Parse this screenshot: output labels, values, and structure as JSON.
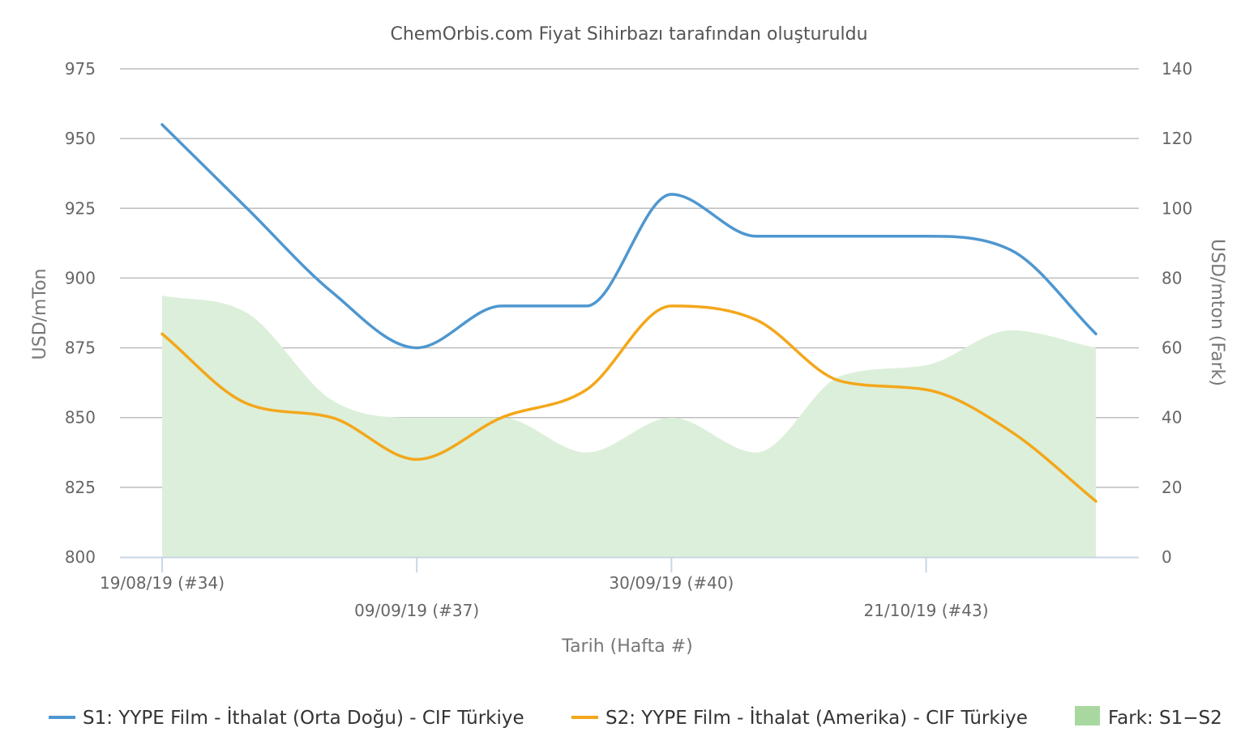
{
  "chart_data": {
    "type": "line",
    "title": "ChemOrbis.com Fiyat Sihirbazı tarafından oluşturuldu",
    "xlabel": "Tarih (Hafta #)",
    "ylabel": "USD/mTon",
    "ylabel_right": "USD/mton (Fark)",
    "x": [
      "19/08/19",
      "26/08/19",
      "02/09/19",
      "09/09/19",
      "16/09/19",
      "23/09/19",
      "30/09/19",
      "07/10/19",
      "14/10/19",
      "21/10/19",
      "28/10/19",
      "04/11/19"
    ],
    "x_tick_labels": [
      {
        "x": "19/08/19",
        "label": "19/08/19 (#34)"
      },
      {
        "x": "09/09/19",
        "label": "09/09/19 (#37)"
      },
      {
        "x": "30/09/19",
        "label": "30/09/19 (#40)"
      },
      {
        "x": "21/10/19",
        "label": "21/10/19 (#43)"
      }
    ],
    "ylim": [
      800,
      975
    ],
    "yticks": [
      800,
      825,
      850,
      875,
      900,
      925,
      950,
      975
    ],
    "ylim_right": [
      0,
      140
    ],
    "yticks_right": [
      0,
      20,
      40,
      60,
      80,
      100,
      120,
      140
    ],
    "grid": true,
    "legend_position": "bottom",
    "series": [
      {
        "name": "S1: YYPE Film - İthalat (Orta Doğu) - CIF Türkiye",
        "axis": "left",
        "type": "line",
        "color": "#4e97d0",
        "values": [
          955,
          925,
          895,
          875,
          890,
          890,
          930,
          915,
          915,
          915,
          910,
          880
        ]
      },
      {
        "name": "S2: YYPE Film - İthalat (Amerika) - CIF Türkiye",
        "axis": "left",
        "type": "line",
        "color": "#f3a71b",
        "values": [
          880,
          855,
          850,
          835,
          850,
          860,
          890,
          885,
          863,
          860,
          845,
          820
        ]
      },
      {
        "name": "Fark: S1−S2",
        "axis": "right",
        "type": "area",
        "color": "#a8d8a0",
        "fill": "#dcefda",
        "values": [
          75,
          70,
          45,
          40,
          40,
          30,
          40,
          30,
          52,
          55,
          65,
          60
        ]
      }
    ]
  }
}
